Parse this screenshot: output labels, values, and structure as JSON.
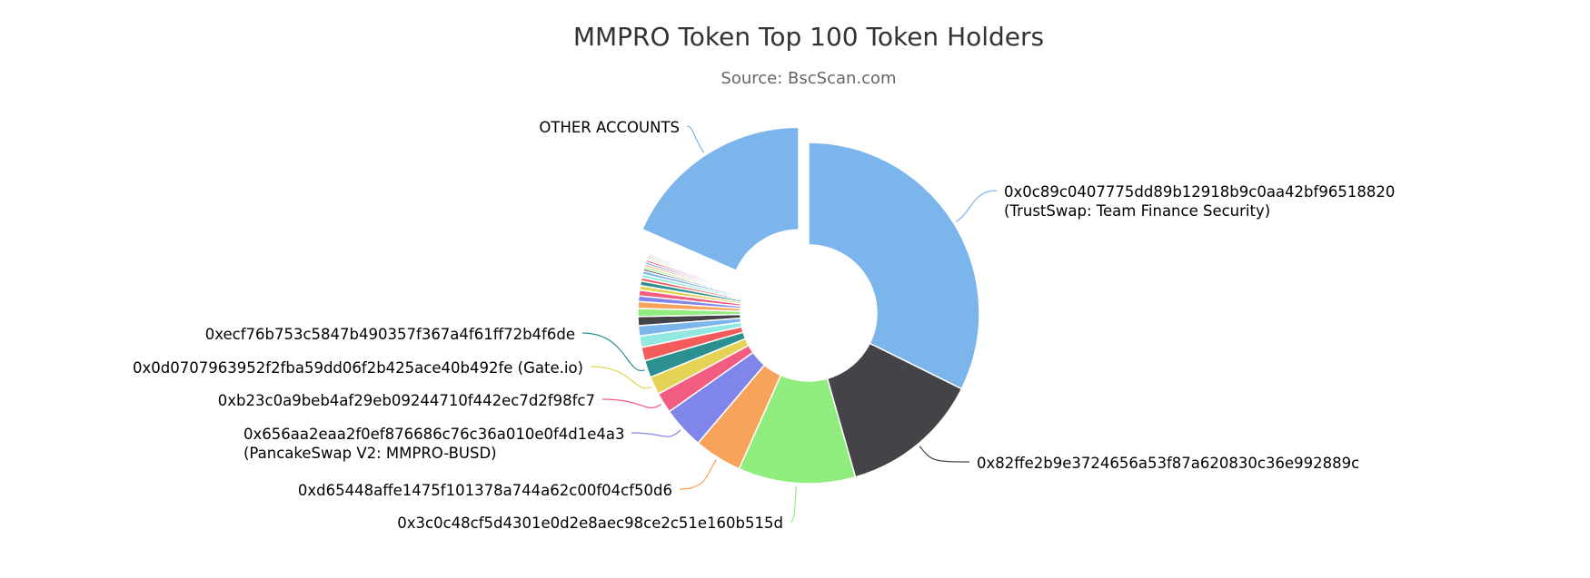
{
  "chart_data": {
    "type": "pie",
    "title": "MMPRO Token Top 100 Token Holders",
    "subtitle": "Source: BscScan.com",
    "slices": [
      {
        "label": [
          "0x0c89c0407775dd89b12918b9c0aa42bf96518820",
          "(TrustSwap: Team Finance Security)"
        ],
        "value": 30.0,
        "color": "#7cb5ec",
        "labeled": true
      },
      {
        "label": [
          "0x82ffe2b9e3724656a53f87a620830c36e992889c"
        ],
        "value": 12.3,
        "color": "#434348",
        "labeled": true
      },
      {
        "label": [
          "0x3c0c48cf5d4301e0d2e8aec98ce2c51e160b515d"
        ],
        "value": 10.3,
        "color": "#90ed7d",
        "labeled": true
      },
      {
        "label": [
          "0xd65448affe1475f101378a744a62c00f04cf50d6"
        ],
        "value": 4.2,
        "color": "#f7a35c",
        "labeled": true
      },
      {
        "label": [
          "0x656aa2eaa2f0ef876686c76c36a010e0f4d1e4a3",
          "(PancakeSwap V2: MMPRO-BUSD)"
        ],
        "value": 3.7,
        "color": "#8085e9",
        "labeled": true
      },
      {
        "label": [
          "0xb23c0a9beb4af29eb09244710f442ec7d2f98fc7"
        ],
        "value": 1.8,
        "color": "#f15c80",
        "labeled": true
      },
      {
        "label": [
          "0x0d0707963952f2fba59dd06f2b425ace40b492fe (Gate.io)"
        ],
        "value": 1.6,
        "color": "#e4d354",
        "labeled": true
      },
      {
        "label": [
          "0xecf76b753c5847b490357f367a4f61ff72b4f6de"
        ],
        "value": 1.5,
        "color": "#2b908f",
        "labeled": true
      },
      {
        "label": [
          ""
        ],
        "value": 1.2,
        "color": "#f45b5b",
        "labeled": false
      },
      {
        "label": [
          ""
        ],
        "value": 1.0,
        "color": "#91e8e1",
        "labeled": false
      },
      {
        "label": [
          ""
        ],
        "value": 0.9,
        "color": "#7cb5ec",
        "labeled": false
      },
      {
        "label": [
          ""
        ],
        "value": 0.8,
        "color": "#434348",
        "labeled": false
      },
      {
        "label": [
          ""
        ],
        "value": 0.7,
        "color": "#90ed7d",
        "labeled": false
      },
      {
        "label": [
          ""
        ],
        "value": 0.6,
        "color": "#f7a35c",
        "labeled": false
      },
      {
        "label": [
          ""
        ],
        "value": 0.5,
        "color": "#8085e9",
        "labeled": false
      },
      {
        "label": [
          ""
        ],
        "value": 0.5,
        "color": "#f15c80",
        "labeled": false
      },
      {
        "label": [
          ""
        ],
        "value": 0.4,
        "color": "#e4d354",
        "labeled": false
      },
      {
        "label": [
          ""
        ],
        "value": 0.4,
        "color": "#2b908f",
        "labeled": false
      },
      {
        "label": [
          ""
        ],
        "value": 0.3,
        "color": "#f45b5b",
        "labeled": false
      },
      {
        "label": [
          ""
        ],
        "value": 0.3,
        "color": "#91e8e1",
        "labeled": false
      },
      {
        "label": [
          ""
        ],
        "value": 0.3,
        "color": "#7cb5ec",
        "labeled": false
      },
      {
        "label": [
          ""
        ],
        "value": 0.2,
        "color": "#434348",
        "labeled": false
      },
      {
        "label": [
          ""
        ],
        "value": 0.2,
        "color": "#90ed7d",
        "labeled": false
      },
      {
        "label": [
          ""
        ],
        "value": 0.2,
        "color": "#f7a35c",
        "labeled": false
      },
      {
        "label": [
          ""
        ],
        "value": 0.2,
        "color": "#8085e9",
        "labeled": false
      },
      {
        "label": [
          ""
        ],
        "value": 0.2,
        "color": "#f15c80",
        "labeled": false
      },
      {
        "label": [
          ""
        ],
        "value": 0.15,
        "color": "#e4d354",
        "labeled": false
      },
      {
        "label": [
          ""
        ],
        "value": 0.15,
        "color": "#2b908f",
        "labeled": false
      },
      {
        "label": [
          ""
        ],
        "value": 0.15,
        "color": "#f45b5b",
        "labeled": false
      },
      {
        "label": [
          ""
        ],
        "value": 0.15,
        "color": "#91e8e1",
        "labeled": false
      },
      {
        "label": [
          ""
        ],
        "value": 0.1,
        "color": "#7cb5ec",
        "labeled": false
      },
      {
        "label": [
          ""
        ],
        "value": 0.1,
        "color": "#434348",
        "labeled": false
      },
      {
        "label": [
          ""
        ],
        "value": 0.1,
        "color": "#90ed7d",
        "labeled": false
      },
      {
        "label": [
          ""
        ],
        "value": 0.1,
        "color": "#f7a35c",
        "labeled": false
      },
      {
        "label": [
          ""
        ],
        "value": 0.1,
        "color": "#8085e9",
        "labeled": false
      },
      {
        "label": [
          ""
        ],
        "value": 0.1,
        "color": "#f15c80",
        "labeled": false
      },
      {
        "label": [
          ""
        ],
        "value": 0.1,
        "color": "#e4d354",
        "labeled": false
      },
      {
        "label": [
          ""
        ],
        "value": 0.1,
        "color": "#2b908f",
        "labeled": false
      },
      {
        "label": [
          "OTHER ACCOUNTS"
        ],
        "value": 17.1,
        "color": "#7cb5ec",
        "labeled": true,
        "sliced": true
      }
    ]
  }
}
